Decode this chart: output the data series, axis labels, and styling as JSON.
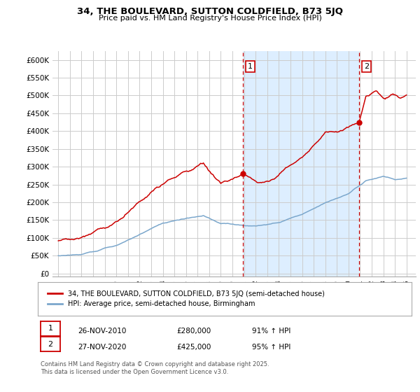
{
  "title": "34, THE BOULEVARD, SUTTON COLDFIELD, B73 5JQ",
  "subtitle": "Price paid vs. HM Land Registry's House Price Index (HPI)",
  "yticks": [
    0,
    50000,
    100000,
    150000,
    200000,
    250000,
    300000,
    350000,
    400000,
    450000,
    500000,
    550000,
    600000
  ],
  "ytick_labels": [
    "£0",
    "£50K",
    "£100K",
    "£150K",
    "£200K",
    "£250K",
    "£300K",
    "£350K",
    "£400K",
    "£450K",
    "£500K",
    "£550K",
    "£600K"
  ],
  "xlim_start": 1994.5,
  "xlim_end": 2025.8,
  "ylim": [
    -8000,
    625000
  ],
  "sale1_x": 2010.92,
  "sale1_y": 280000,
  "sale1_label": "1",
  "sale2_x": 2020.92,
  "sale2_y": 425000,
  "sale2_label": "2",
  "red_line_color": "#cc0000",
  "blue_line_color": "#7ba7cc",
  "shade_color": "#ddeeff",
  "marker_fill": "#cc0000",
  "grid_color": "#cccccc",
  "legend1_label": "34, THE BOULEVARD, SUTTON COLDFIELD, B73 5JQ (semi-detached house)",
  "legend2_label": "HPI: Average price, semi-detached house, Birmingham",
  "table_row1": [
    "1",
    "26-NOV-2010",
    "£280,000",
    "91% ↑ HPI"
  ],
  "table_row2": [
    "2",
    "27-NOV-2020",
    "£425,000",
    "95% ↑ HPI"
  ],
  "footnote": "Contains HM Land Registry data © Crown copyright and database right 2025.\nThis data is licensed under the Open Government Licence v3.0."
}
